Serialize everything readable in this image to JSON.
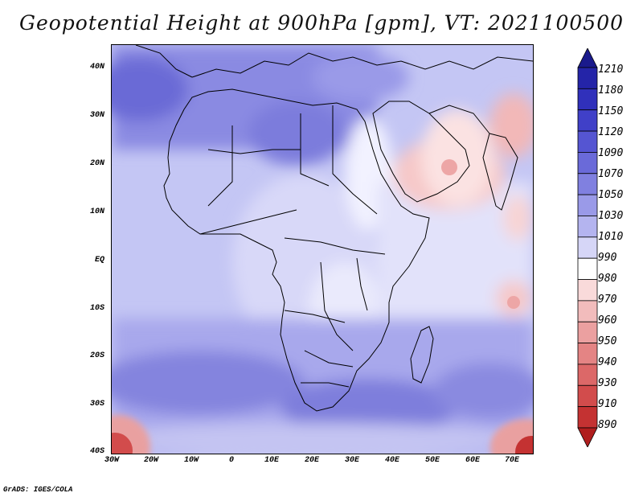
{
  "title": "Geopotential Height at 900hPa [gpm], VT: 2021100500",
  "credit": "GrADS: IGES/COLA",
  "lat_labels": [
    "40N",
    "30N",
    "20N",
    "10N",
    "EQ",
    "10S",
    "20S",
    "30S",
    "40S"
  ],
  "lon_labels": [
    "30W",
    "20W",
    "10W",
    "0",
    "10E",
    "20E",
    "30E",
    "40E",
    "50E",
    "60E",
    "70E"
  ],
  "colorbar": {
    "levels": [
      "1210",
      "1180",
      "1150",
      "1120",
      "1090",
      "1070",
      "1050",
      "1030",
      "1010",
      "990",
      "980",
      "970",
      "960",
      "950",
      "940",
      "930",
      "910",
      "890"
    ],
    "colors": [
      "#1a1a8c",
      "#2424a8",
      "#3030bb",
      "#4040c8",
      "#5555d2",
      "#6a6ad9",
      "#8080e0",
      "#9a9ae8",
      "#b4b4ef",
      "#d6d6f7",
      "#ffffff",
      "#f9dada",
      "#f2bcbc",
      "#eba0a0",
      "#e48484",
      "#dc6868",
      "#d24c4c",
      "#c43232",
      "#b01e1e"
    ]
  }
}
